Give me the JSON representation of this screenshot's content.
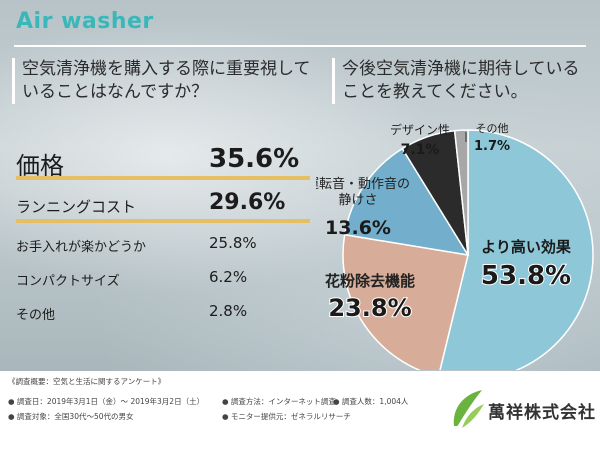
{
  "header": {
    "title": "Air washer"
  },
  "questions": {
    "left": "空気清浄機を購入する際に重要視していることはなんですか？",
    "right": "今後空気清浄機に期待していることを教えてください。"
  },
  "chart_data": [
    {
      "type": "table",
      "title": "空気清浄機を購入する際に重要視していることはなんですか？",
      "categories": [
        "価格",
        "ランニングコスト",
        "お手入れが楽かどうか",
        "コンパクトサイズ",
        "その他"
      ],
      "values": [
        35.6,
        29.6,
        25.8,
        6.2,
        2.8
      ],
      "value_labels": [
        "35.6%",
        "29.6%",
        "25.8%",
        "6.2%",
        "2.8%"
      ],
      "unit": "%"
    },
    {
      "type": "pie",
      "title": "今後空気清浄機に期待していることを教えてください。",
      "categories": [
        "より高い効果",
        "花粉除去機能",
        "運転音・動作音の静けさ",
        "デザイン性",
        "その他"
      ],
      "label_lines": [
        [
          "より高い効果"
        ],
        [
          "花粉除去機能"
        ],
        [
          "運転音・動作音の",
          "静けさ"
        ],
        [
          "デザイン性"
        ],
        [
          "その他"
        ]
      ],
      "values": [
        53.8,
        23.8,
        13.6,
        7.1,
        1.7
      ],
      "value_labels": [
        "53.8%",
        "23.8%",
        "13.6%",
        "7.1%",
        "1.7%"
      ],
      "colors": [
        "#8ec7d8",
        "#d7ad99",
        "#73afcc",
        "#2b2b2b",
        "#a7a7a7"
      ],
      "unit": "%"
    }
  ],
  "footer": {
    "heading": "《調査概要：空気と生活に関するアンケート》",
    "period": "● 調査日：2019年3月1日（金）〜 2019年3月2日（土）",
    "method": "● 調査方法：インターネット調査",
    "count": "● 調査人数：1,004人",
    "target": "● 調査対象：全国30代〜50代の男女",
    "provider": "● モニター提供元：ゼネラルリサーチ",
    "company": "萬祥株式会社"
  },
  "colors": {
    "accent": "#39b7b9",
    "highlight": "#e6bf63",
    "logo_green": "#6ab33e"
  }
}
